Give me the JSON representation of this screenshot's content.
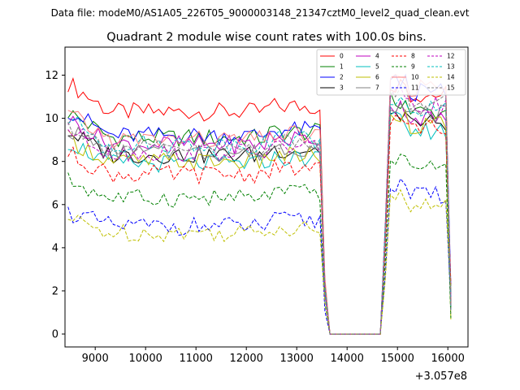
{
  "suptitle": "Data file: modeM0/AS1A05_226T05_9000003148_21347cztM0_level2_quad_clean.evt",
  "chart_data": {
    "type": "line",
    "title": "Quadrant 2 module wise count rates with 100.0s bins.",
    "xlabel": "",
    "ylabel": "",
    "x_offset_label": "+3.057e8",
    "x_offset": 305700000,
    "xlim": [
      8400,
      16400
    ],
    "ylim": [
      -0.6,
      13.3
    ],
    "x_ticks": [
      9000,
      10000,
      11000,
      12000,
      13000,
      14000,
      15000,
      16000
    ],
    "y_ticks": [
      0,
      2,
      4,
      6,
      8,
      10,
      12
    ],
    "grid": false,
    "legend_position": "top-right",
    "segments": [
      {
        "x_start": 8460,
        "x_end": 13560,
        "step": 100
      },
      {
        "x_start": 14760,
        "x_end": 16060,
        "step": 100
      }
    ],
    "gap_zero_range": [
      13660,
      14660
    ],
    "series": [
      {
        "name": "0",
        "color": "#ff0000",
        "style": "solid",
        "level1": 10.3,
        "level2": 11.1
      },
      {
        "name": "1",
        "color": "#008000",
        "style": "solid",
        "level1": 9.1,
        "level2": 10.3
      },
      {
        "name": "2",
        "color": "#0000ff",
        "style": "solid",
        "level1": 9.2,
        "level2": 11.2
      },
      {
        "name": "3",
        "color": "#000000",
        "style": "solid",
        "level1": 8.3,
        "level2": 9.8
      },
      {
        "name": "4",
        "color": "#bf00bf",
        "style": "solid",
        "level1": 8.8,
        "level2": 10.0
      },
      {
        "name": "5",
        "color": "#00bfbf",
        "style": "solid",
        "level1": 7.9,
        "level2": 9.4
      },
      {
        "name": "6",
        "color": "#bfbf00",
        "style": "solid",
        "level1": 8.0,
        "level2": 9.7
      },
      {
        "name": "7",
        "color": "#808080",
        "style": "solid",
        "level1": 8.4,
        "level2": 10.2
      },
      {
        "name": "8",
        "color": "#ff0000",
        "style": "dashed",
        "level1": 7.4,
        "level2": 9.6
      },
      {
        "name": "9",
        "color": "#008000",
        "style": "dashed",
        "level1": 6.3,
        "level2": 7.7
      },
      {
        "name": "10",
        "color": "#ff7f7f",
        "style": "solid",
        "level1": 9.0,
        "level2": 11.4
      },
      {
        "name": "11",
        "color": "#0000ff",
        "style": "dashed",
        "level1": 5.0,
        "level2": 6.4
      },
      {
        "name": "12",
        "color": "#bf00bf",
        "style": "dashed",
        "level1": 8.4,
        "level2": 10.6
      },
      {
        "name": "13",
        "color": "#00bfbf",
        "style": "dashed",
        "level1": 8.8,
        "level2": 10.5
      },
      {
        "name": "14",
        "color": "#bfbf00",
        "style": "dashed",
        "level1": 4.7,
        "level2": 5.9
      },
      {
        "name": "15",
        "color": "#808080",
        "style": "dashed",
        "level1": 8.6,
        "level2": 10.7
      }
    ]
  }
}
